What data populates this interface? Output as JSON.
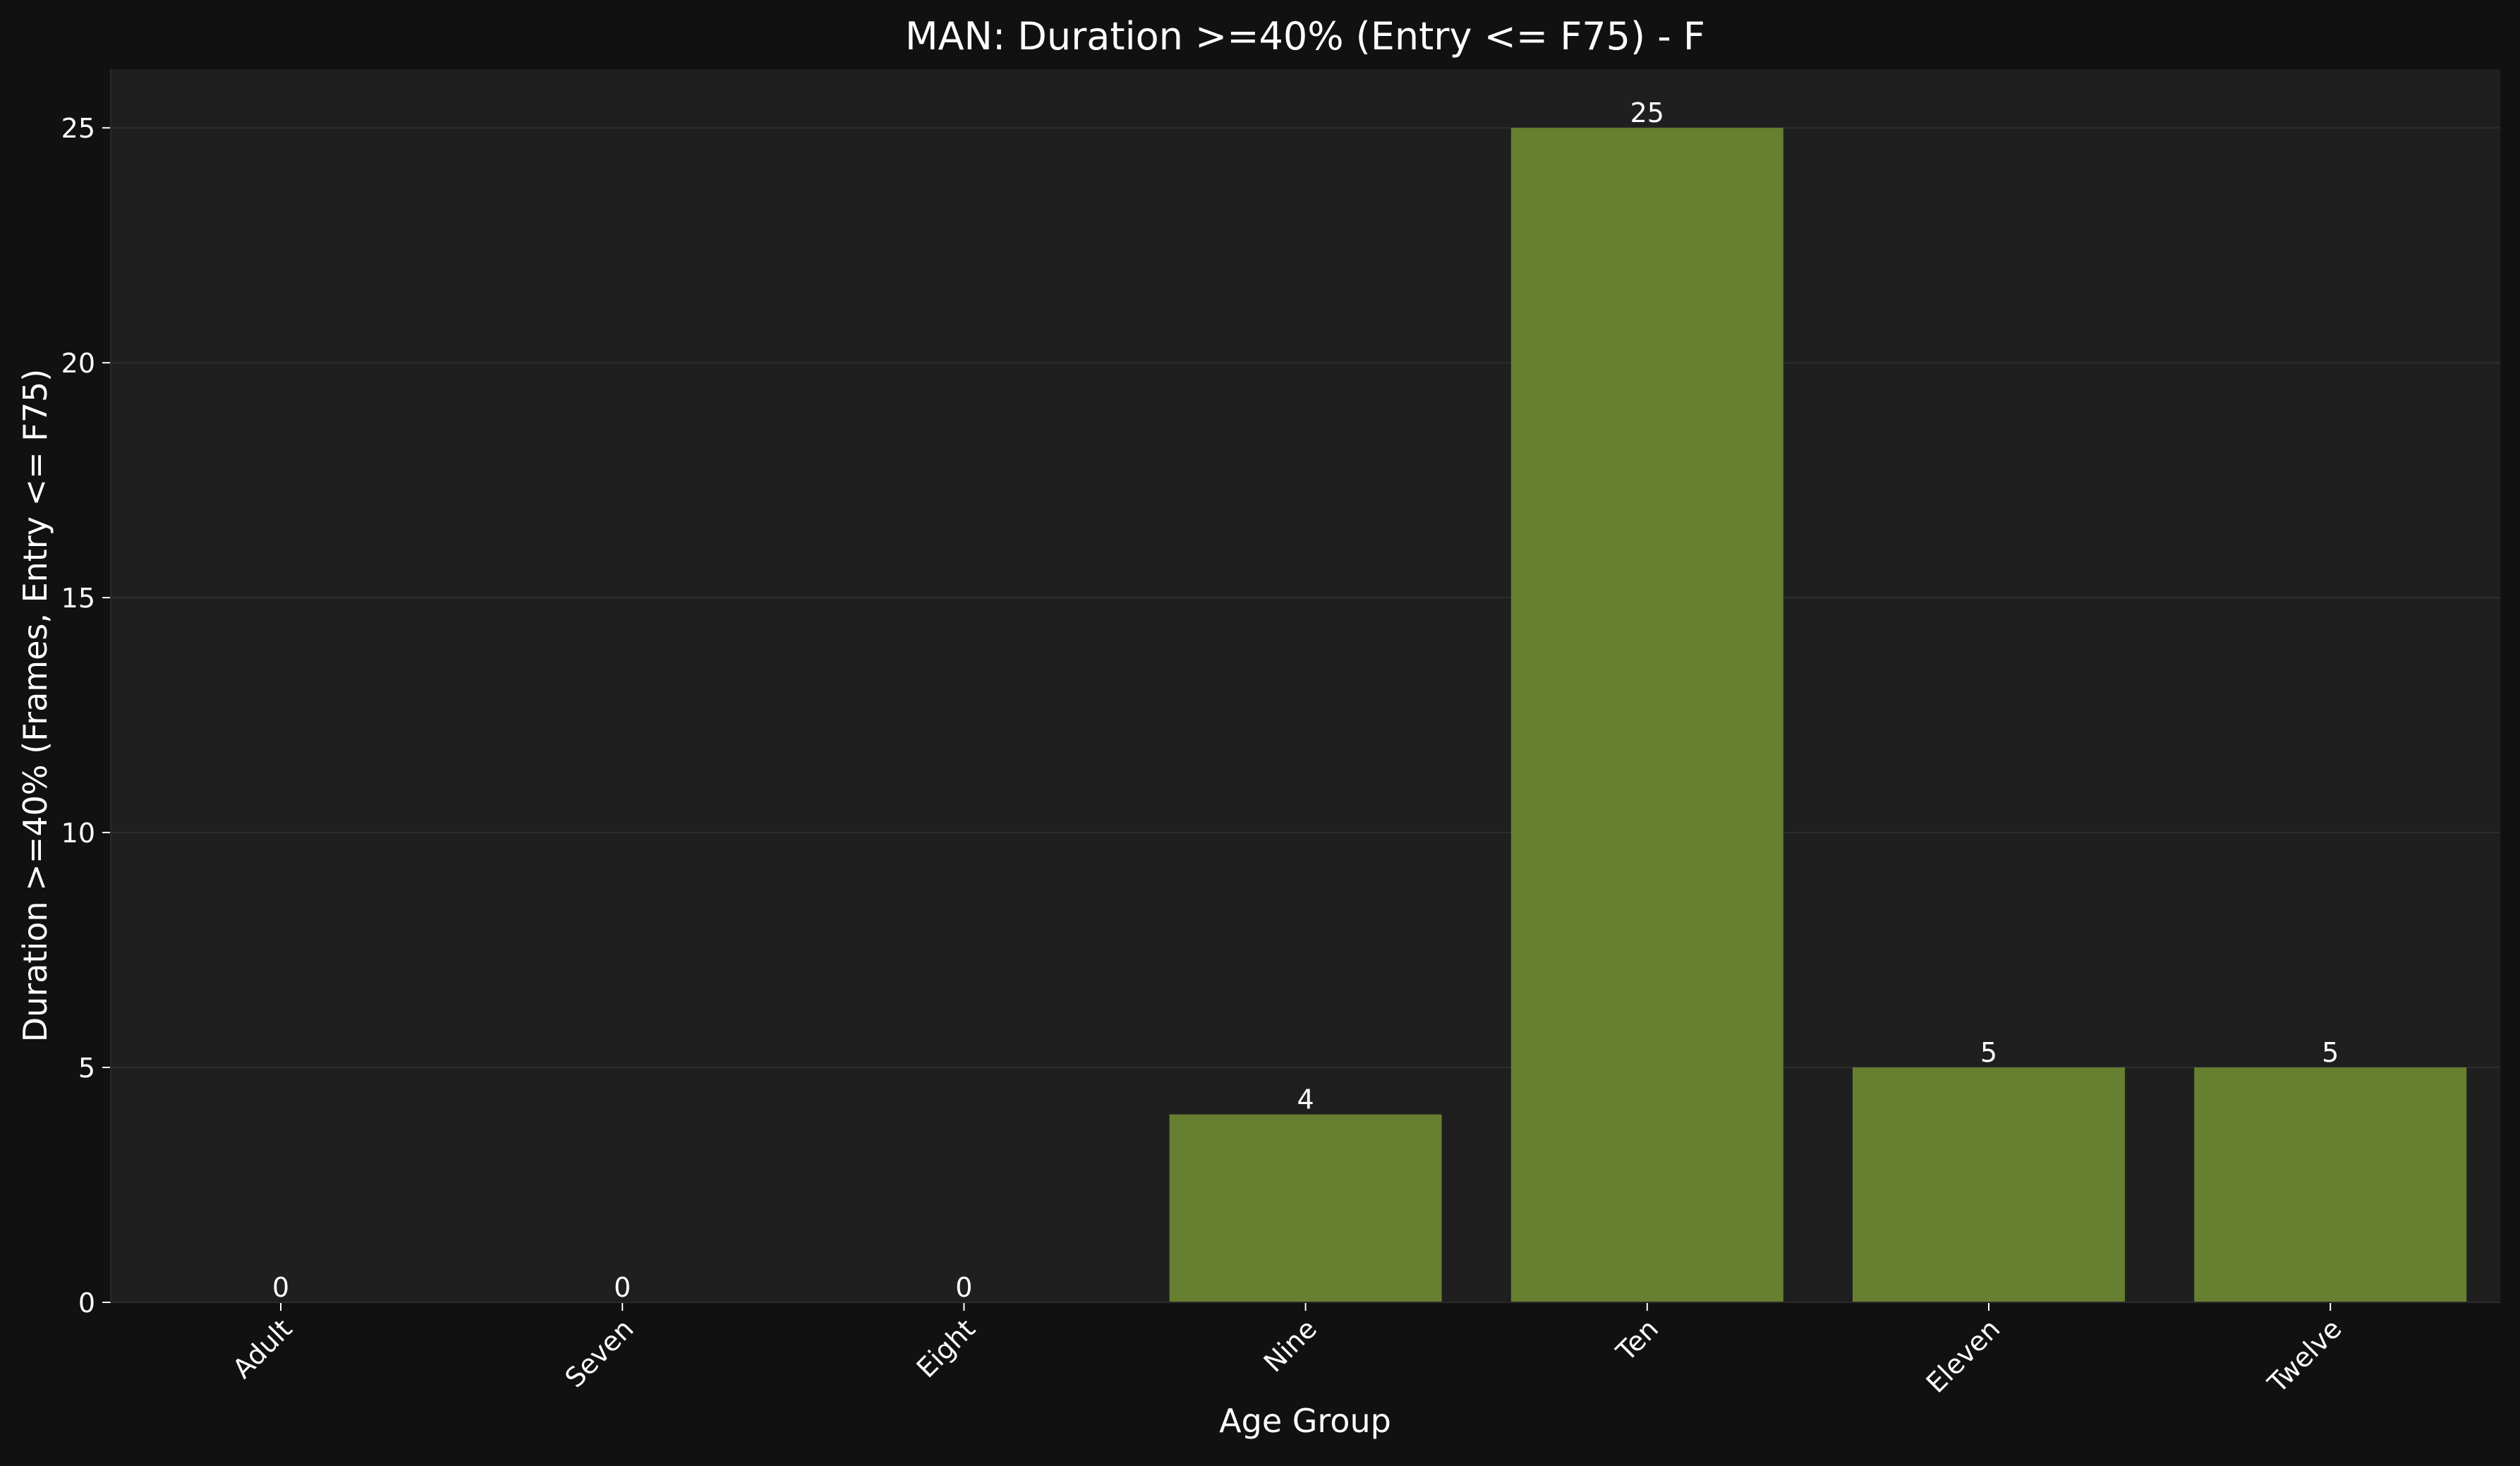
{
  "chart_data": {
    "type": "bar",
    "title": "MAN: Duration >=40% (Entry <= F75) - F",
    "xlabel": "Age Group",
    "ylabel": "Duration >=40% (Frames, Entry <= F75)",
    "categories": [
      "Adult",
      "Seven",
      "Eight",
      "Nine",
      "Ten",
      "Eleven",
      "Twelve"
    ],
    "values": [
      0,
      0,
      0,
      4,
      25,
      5,
      5
    ],
    "data_labels": [
      "0",
      "0",
      "0",
      "4",
      "25",
      "5",
      "5"
    ],
    "ylim": [
      0,
      26.25
    ],
    "yticks": [
      0,
      5,
      10,
      15,
      20,
      25
    ],
    "ytick_labels": [
      "0",
      "5",
      "10",
      "15",
      "20",
      "25"
    ],
    "grid": "horizontal",
    "legend": "none",
    "colors": {
      "figure_bg": "#111111",
      "plot_bg": "#1f1f1f",
      "bar": "#667f30",
      "grid": "#2e2e2e",
      "text": "#ffffff"
    }
  }
}
